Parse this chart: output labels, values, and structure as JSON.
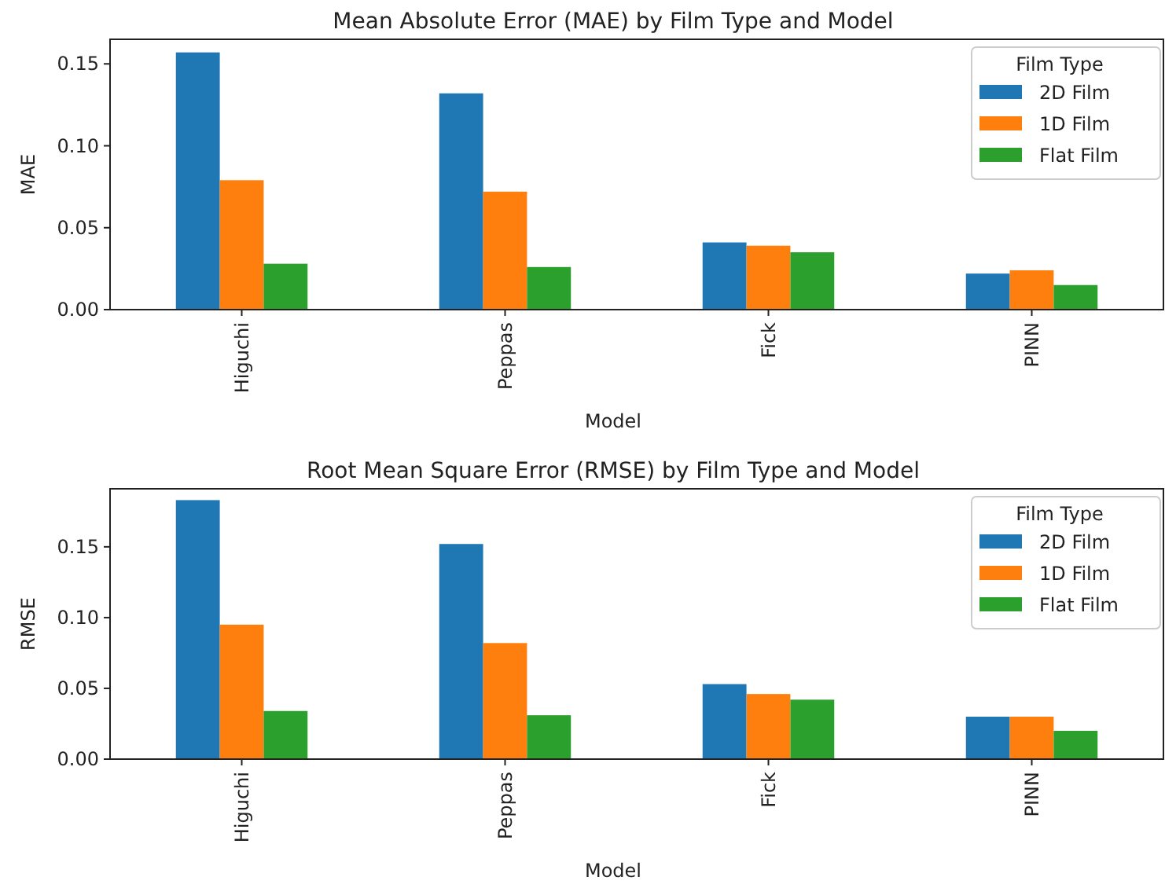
{
  "chart_data": [
    {
      "type": "bar",
      "title": "Mean Absolute Error (MAE) by Film Type and Model",
      "xlabel": "Model",
      "ylabel": "MAE",
      "legend_title": "Film Type",
      "legend": "top right",
      "categories": [
        "Higuchi",
        "Peppas",
        "Fick",
        "PINN"
      ],
      "series": [
        {
          "name": "2D Film",
          "color": "#1f77b4",
          "values": [
            0.157,
            0.132,
            0.041,
            0.022
          ]
        },
        {
          "name": "1D Film",
          "color": "#ff7f0e",
          "values": [
            0.079,
            0.072,
            0.039,
            0.024
          ]
        },
        {
          "name": "Flat Film",
          "color": "#2ca02c",
          "values": [
            0.028,
            0.026,
            0.035,
            0.015
          ]
        }
      ],
      "ylim": [
        0,
        0.165
      ],
      "yticks": [
        {
          "value": 0,
          "label": "0.00"
        },
        {
          "value": 0.05,
          "label": "0.05"
        },
        {
          "value": 0.1,
          "label": "0.10"
        },
        {
          "value": 0.15,
          "label": "0.15"
        }
      ]
    },
    {
      "type": "bar",
      "title": "Root Mean Square Error (RMSE) by Film Type and Model",
      "xlabel": "Model",
      "ylabel": "RMSE",
      "legend_title": "Film Type",
      "legend": "top right",
      "categories": [
        "Higuchi",
        "Peppas",
        "Fick",
        "PINN"
      ],
      "series": [
        {
          "name": "2D Film",
          "color": "#1f77b4",
          "values": [
            0.183,
            0.152,
            0.053,
            0.03
          ]
        },
        {
          "name": "1D Film",
          "color": "#ff7f0e",
          "values": [
            0.095,
            0.082,
            0.046,
            0.03
          ]
        },
        {
          "name": "Flat Film",
          "color": "#2ca02c",
          "values": [
            0.034,
            0.031,
            0.042,
            0.02
          ]
        }
      ],
      "ylim": [
        0,
        0.191
      ],
      "yticks": [
        {
          "value": 0,
          "label": "0.00"
        },
        {
          "value": 0.05,
          "label": "0.05"
        },
        {
          "value": 0.1,
          "label": "0.10"
        },
        {
          "value": 0.15,
          "label": "0.15"
        }
      ]
    }
  ]
}
